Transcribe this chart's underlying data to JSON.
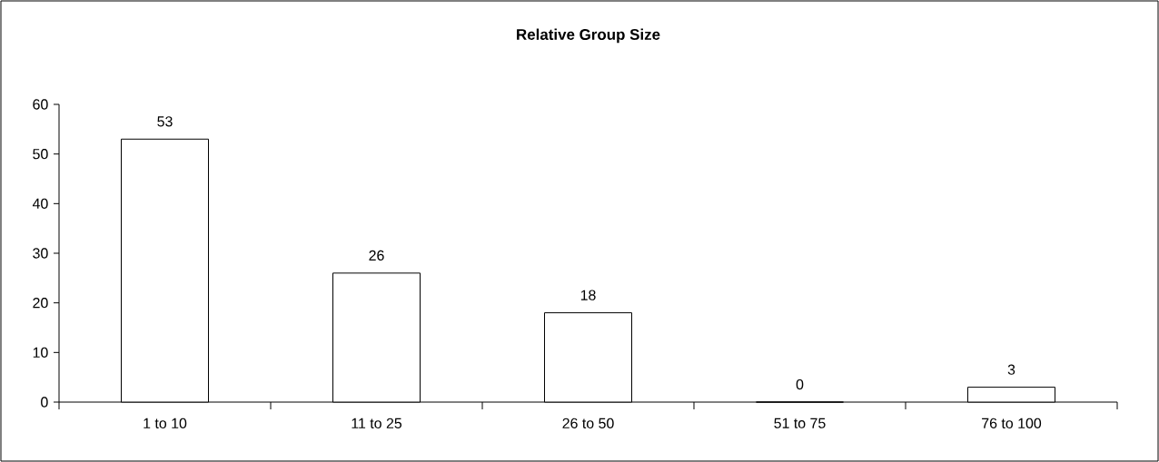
{
  "chart_data": {
    "type": "bar",
    "title": "Relative Group Size",
    "categories": [
      "1 to 10",
      "11 to 25",
      "26 to 50",
      "51 to 75",
      "76 to 100"
    ],
    "values": [
      53,
      26,
      18,
      0,
      3
    ],
    "color": "#ffffff",
    "ylim": [
      0,
      60
    ],
    "yticks": [
      0,
      10,
      20,
      30,
      40,
      50,
      60
    ],
    "grid": false,
    "data_labels": true
  }
}
